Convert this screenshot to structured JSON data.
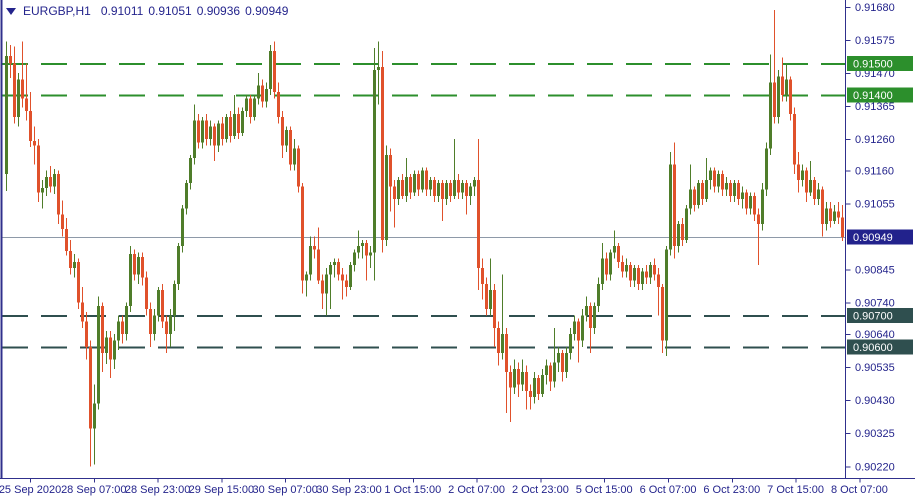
{
  "header": {
    "symbol": "EURGBP,H1",
    "open": "0.91011",
    "high": "0.91051",
    "low": "0.90936",
    "close": "0.90949"
  },
  "colors": {
    "bull": "#4f7d2a",
    "bear": "#e0512b",
    "axis_line": "#30308c",
    "axis_text": "#24248c",
    "background": "#ffffff"
  },
  "chart_data": {
    "type": "candlestick",
    "symbol": "EURGBP",
    "timeframe": "H1",
    "title": "EURGBP,H1  0.91011 0.91051 0.90936 0.90949",
    "grid": false,
    "legend": "none",
    "ylim": [
      0.9022,
      0.9168
    ],
    "y_ticks": [
      "0.91680",
      "0.91575",
      "0.91470",
      "0.91365",
      "0.91260",
      "0.91160",
      "0.91055",
      "0.90845",
      "0.90740",
      "0.90640",
      "0.90535",
      "0.90430",
      "0.90325",
      "0.90220"
    ],
    "x_ticks": [
      "25 Sep 2020",
      "28 Sep 07:00",
      "28 Sep 23:00",
      "29 Sep 15:00",
      "30 Sep 07:00",
      "30 Sep 23:00",
      "1 Oct 15:00",
      "2 Oct 07:00",
      "2 Oct 23:00",
      "5 Oct 15:00",
      "6 Oct 07:00",
      "6 Oct 23:00",
      "7 Oct 15:00",
      "8 Oct 07:00"
    ],
    "levels": [
      {
        "label": "0.91500",
        "price": 0.915,
        "color": "#2c8f2c",
        "style": "dashed"
      },
      {
        "label": "0.91400",
        "price": 0.914,
        "color": "#2c8f2c",
        "style": "dashed"
      },
      {
        "label": "0.90700",
        "price": 0.907,
        "color": "#2f4f4f",
        "style": "dashed"
      },
      {
        "label": "0.90600",
        "price": 0.906,
        "color": "#2f4f4f",
        "style": "dashed"
      }
    ],
    "current_price": {
      "label": "0.90949",
      "price": 0.90949,
      "line_color": "#8e99a8",
      "badge_color": "#22228c"
    },
    "candles": [
      [
        0.9115,
        0.9157,
        0.91095,
        0.91525
      ],
      [
        0.91525,
        0.9156,
        0.91455,
        0.915
      ],
      [
        0.915,
        0.91555,
        0.9131,
        0.9133
      ],
      [
        0.9133,
        0.9147,
        0.913,
        0.9145
      ],
      [
        0.9145,
        0.9157,
        0.9136,
        0.9139
      ],
      [
        0.9139,
        0.915,
        0.9132,
        0.9135
      ],
      [
        0.9135,
        0.9141,
        0.91235,
        0.91255
      ],
      [
        0.91255,
        0.913,
        0.9118,
        0.9124
      ],
      [
        0.9124,
        0.9126,
        0.9106,
        0.9109
      ],
      [
        0.9109,
        0.9113,
        0.9104,
        0.91105
      ],
      [
        0.91105,
        0.9116,
        0.9108,
        0.9114
      ],
      [
        0.9114,
        0.91175,
        0.9109,
        0.9111
      ],
      [
        0.9111,
        0.91165,
        0.91085,
        0.9115
      ],
      [
        0.9115,
        0.9116,
        0.9099,
        0.9102
      ],
      [
        0.9102,
        0.91065,
        0.9095,
        0.90975
      ],
      [
        0.90975,
        0.9101,
        0.9089,
        0.90905
      ],
      [
        0.90905,
        0.9094,
        0.9083,
        0.9085
      ],
      [
        0.9085,
        0.90895,
        0.9082,
        0.9087
      ],
      [
        0.9087,
        0.9088,
        0.9072,
        0.9074
      ],
      [
        0.9074,
        0.9079,
        0.9066,
        0.9068
      ],
      [
        0.9068,
        0.9071,
        0.9056,
        0.906
      ],
      [
        0.906,
        0.9062,
        0.9022,
        0.9034
      ],
      [
        0.9034,
        0.9048,
        0.90225,
        0.9042
      ],
      [
        0.9042,
        0.9076,
        0.904,
        0.9073
      ],
      [
        0.9073,
        0.9074,
        0.9052,
        0.9058
      ],
      [
        0.9058,
        0.9065,
        0.90545,
        0.9063
      ],
      [
        0.9063,
        0.9065,
        0.905,
        0.9056
      ],
      [
        0.9056,
        0.9064,
        0.9053,
        0.9062
      ],
      [
        0.9062,
        0.907,
        0.9059,
        0.9068
      ],
      [
        0.9068,
        0.907,
        0.9061,
        0.9064
      ],
      [
        0.9064,
        0.9074,
        0.9062,
        0.9073
      ],
      [
        0.9073,
        0.9092,
        0.9071,
        0.90895
      ],
      [
        0.90895,
        0.9091,
        0.9081,
        0.9083
      ],
      [
        0.9083,
        0.909,
        0.908,
        0.90885
      ],
      [
        0.90885,
        0.909,
        0.90795,
        0.9082
      ],
      [
        0.9082,
        0.9084,
        0.907,
        0.9072
      ],
      [
        0.9072,
        0.9074,
        0.906,
        0.9064
      ],
      [
        0.9064,
        0.9072,
        0.9062,
        0.907
      ],
      [
        0.907,
        0.9079,
        0.9068,
        0.9078
      ],
      [
        0.9078,
        0.908,
        0.9066,
        0.9068
      ],
      [
        0.9068,
        0.907,
        0.9058,
        0.9064
      ],
      [
        0.9064,
        0.9072,
        0.906,
        0.907
      ],
      [
        0.907,
        0.9081,
        0.9065,
        0.908
      ],
      [
        0.908,
        0.9093,
        0.9078,
        0.9092
      ],
      [
        0.9092,
        0.9105,
        0.909,
        0.9104
      ],
      [
        0.9104,
        0.9113,
        0.9102,
        0.9112
      ],
      [
        0.9112,
        0.9121,
        0.911,
        0.912
      ],
      [
        0.912,
        0.9137,
        0.9118,
        0.9132
      ],
      [
        0.9132,
        0.9134,
        0.9123,
        0.9125
      ],
      [
        0.9125,
        0.9133,
        0.9123,
        0.9132
      ],
      [
        0.9132,
        0.9134,
        0.9124,
        0.9126
      ],
      [
        0.9126,
        0.9132,
        0.9124,
        0.913
      ],
      [
        0.913,
        0.9131,
        0.9119,
        0.9124
      ],
      [
        0.9124,
        0.9132,
        0.9122,
        0.9131
      ],
      [
        0.9131,
        0.9133,
        0.9124,
        0.9126
      ],
      [
        0.9126,
        0.9134,
        0.9125,
        0.9133
      ],
      [
        0.9133,
        0.9135,
        0.9125,
        0.9127
      ],
      [
        0.9127,
        0.914,
        0.9126,
        0.9134
      ],
      [
        0.9134,
        0.9136,
        0.9126,
        0.9128
      ],
      [
        0.9128,
        0.9136,
        0.9127,
        0.9135
      ],
      [
        0.9135,
        0.914,
        0.9133,
        0.9139
      ],
      [
        0.9139,
        0.914,
        0.9131,
        0.9133
      ],
      [
        0.9133,
        0.914,
        0.9132,
        0.9139
      ],
      [
        0.9139,
        0.9147,
        0.9137,
        0.9143
      ],
      [
        0.9143,
        0.9145,
        0.9136,
        0.9138
      ],
      [
        0.9138,
        0.9144,
        0.9136,
        0.9142
      ],
      [
        0.9142,
        0.9156,
        0.914,
        0.9154
      ],
      [
        0.9154,
        0.9157,
        0.9139,
        0.9141
      ],
      [
        0.9141,
        0.9144,
        0.9131,
        0.9133
      ],
      [
        0.9133,
        0.9135,
        0.912,
        0.9124
      ],
      [
        0.9124,
        0.913,
        0.9122,
        0.9129
      ],
      [
        0.9129,
        0.913,
        0.9116,
        0.9118
      ],
      [
        0.9118,
        0.9126,
        0.9116,
        0.9123
      ],
      [
        0.9123,
        0.9124,
        0.9109,
        0.9111
      ],
      [
        0.9111,
        0.9112,
        0.9077,
        0.9081
      ],
      [
        0.9081,
        0.9084,
        0.9076,
        0.9083
      ],
      [
        0.9083,
        0.9095,
        0.9081,
        0.9092
      ],
      [
        0.9092,
        0.9095,
        0.9088,
        0.9091
      ],
      [
        0.9091,
        0.9098,
        0.908,
        0.9081
      ],
      [
        0.9081,
        0.9083,
        0.9072,
        0.9077
      ],
      [
        0.9077,
        0.9085,
        0.907,
        0.9083
      ],
      [
        0.9083,
        0.9087,
        0.9072,
        0.9086
      ],
      [
        0.9086,
        0.9088,
        0.9082,
        0.9087
      ],
      [
        0.9087,
        0.9088,
        0.9081,
        0.9083
      ],
      [
        0.9083,
        0.9085,
        0.9075,
        0.9081
      ],
      [
        0.9081,
        0.9083,
        0.9076,
        0.9079
      ],
      [
        0.9079,
        0.9087,
        0.9078,
        0.9086
      ],
      [
        0.9086,
        0.9091,
        0.9084,
        0.909
      ],
      [
        0.909,
        0.9097,
        0.9088,
        0.9092
      ],
      [
        0.9092,
        0.9094,
        0.9088,
        0.9093
      ],
      [
        0.9093,
        0.9094,
        0.9081,
        0.9089
      ],
      [
        0.9089,
        0.9092,
        0.9085,
        0.909
      ],
      [
        0.909,
        0.9155,
        0.9081,
        0.9148
      ],
      [
        0.9148,
        0.9157,
        0.9137,
        0.9149
      ],
      [
        0.9149,
        0.9154,
        0.909,
        0.9094
      ],
      [
        0.9094,
        0.9124,
        0.9092,
        0.9121
      ],
      [
        0.9121,
        0.9123,
        0.9103,
        0.9111
      ],
      [
        0.9111,
        0.9113,
        0.9098,
        0.9107
      ],
      [
        0.9107,
        0.9114,
        0.9105,
        0.9113
      ],
      [
        0.9113,
        0.9115,
        0.9107,
        0.9108
      ],
      [
        0.9108,
        0.912,
        0.9106,
        0.9114
      ],
      [
        0.9114,
        0.9115,
        0.9107,
        0.9109
      ],
      [
        0.9109,
        0.9116,
        0.9108,
        0.9115
      ],
      [
        0.9115,
        0.9116,
        0.9108,
        0.911
      ],
      [
        0.911,
        0.9117,
        0.9109,
        0.9116
      ],
      [
        0.9116,
        0.9117,
        0.9108,
        0.911
      ],
      [
        0.911,
        0.9114,
        0.9108,
        0.9113
      ],
      [
        0.9113,
        0.9114,
        0.9106,
        0.9108
      ],
      [
        0.9108,
        0.9113,
        0.9106,
        0.9112
      ],
      [
        0.9112,
        0.9113,
        0.91,
        0.9107
      ],
      [
        0.9107,
        0.9113,
        0.9105,
        0.9112
      ],
      [
        0.9112,
        0.9113,
        0.9106,
        0.9108
      ],
      [
        0.9108,
        0.9126,
        0.9107,
        0.9113
      ],
      [
        0.9113,
        0.9115,
        0.9107,
        0.9109
      ],
      [
        0.9109,
        0.9113,
        0.9107,
        0.9112
      ],
      [
        0.9112,
        0.9113,
        0.9102,
        0.9108
      ],
      [
        0.9108,
        0.9112,
        0.9105,
        0.9111
      ],
      [
        0.9111,
        0.9114,
        0.9108,
        0.9113
      ],
      [
        0.9113,
        0.9126,
        0.9078,
        0.9085
      ],
      [
        0.9085,
        0.9088,
        0.9075,
        0.908
      ],
      [
        0.908,
        0.9082,
        0.907,
        0.9072
      ],
      [
        0.9072,
        0.9088,
        0.907,
        0.9078
      ],
      [
        0.9078,
        0.908,
        0.906,
        0.9066
      ],
      [
        0.9066,
        0.9068,
        0.9054,
        0.9058
      ],
      [
        0.9058,
        0.9083,
        0.9056,
        0.9064
      ],
      [
        0.9064,
        0.9066,
        0.9039,
        0.9052
      ],
      [
        0.9052,
        0.9054,
        0.9036,
        0.9047
      ],
      [
        0.9047,
        0.9056,
        0.9045,
        0.9053
      ],
      [
        0.9053,
        0.9055,
        0.9044,
        0.9048
      ],
      [
        0.9048,
        0.9056,
        0.9046,
        0.9052
      ],
      [
        0.9052,
        0.9054,
        0.904,
        0.9046
      ],
      [
        0.9046,
        0.9048,
        0.904,
        0.9044
      ],
      [
        0.9044,
        0.9052,
        0.9042,
        0.905
      ],
      [
        0.905,
        0.9051,
        0.9043,
        0.9045
      ],
      [
        0.9045,
        0.9053,
        0.9044,
        0.9051
      ],
      [
        0.9051,
        0.9056,
        0.9048,
        0.9054
      ],
      [
        0.9054,
        0.9055,
        0.9046,
        0.9049
      ],
      [
        0.9049,
        0.9066,
        0.9047,
        0.9055
      ],
      [
        0.9055,
        0.906,
        0.9052,
        0.9058
      ],
      [
        0.9058,
        0.9059,
        0.9049,
        0.9052
      ],
      [
        0.9052,
        0.906,
        0.905,
        0.9058
      ],
      [
        0.9058,
        0.9066,
        0.9056,
        0.9064
      ],
      [
        0.9064,
        0.907,
        0.9062,
        0.9068
      ],
      [
        0.9068,
        0.9069,
        0.9055,
        0.9062
      ],
      [
        0.9062,
        0.9072,
        0.906,
        0.907
      ],
      [
        0.907,
        0.9076,
        0.9068,
        0.9073
      ],
      [
        0.9073,
        0.9074,
        0.9058,
        0.9066
      ],
      [
        0.9066,
        0.9074,
        0.9064,
        0.9073
      ],
      [
        0.9073,
        0.9082,
        0.9071,
        0.908
      ],
      [
        0.908,
        0.9093,
        0.9078,
        0.9088
      ],
      [
        0.9088,
        0.909,
        0.9081,
        0.9083
      ],
      [
        0.9083,
        0.9091,
        0.9081,
        0.909
      ],
      [
        0.909,
        0.9097,
        0.9088,
        0.9092
      ],
      [
        0.9092,
        0.9093,
        0.9085,
        0.9087
      ],
      [
        0.9087,
        0.9089,
        0.9082,
        0.9084
      ],
      [
        0.9084,
        0.9088,
        0.9082,
        0.9086
      ],
      [
        0.9086,
        0.9087,
        0.9079,
        0.9081
      ],
      [
        0.9081,
        0.9086,
        0.9079,
        0.9085
      ],
      [
        0.9085,
        0.9086,
        0.9078,
        0.908
      ],
      [
        0.908,
        0.9085,
        0.9078,
        0.9084
      ],
      [
        0.9084,
        0.9086,
        0.908,
        0.9082
      ],
      [
        0.9082,
        0.9087,
        0.908,
        0.9086
      ],
      [
        0.9086,
        0.9088,
        0.9081,
        0.9083
      ],
      [
        0.9083,
        0.9085,
        0.907,
        0.9079
      ],
      [
        0.9079,
        0.908,
        0.9058,
        0.9062
      ],
      [
        0.9062,
        0.9092,
        0.9057,
        0.9091
      ],
      [
        0.9091,
        0.9122,
        0.9089,
        0.9118
      ],
      [
        0.9118,
        0.9125,
        0.9088,
        0.9092
      ],
      [
        0.9092,
        0.91,
        0.909,
        0.9099
      ],
      [
        0.9099,
        0.9101,
        0.9092,
        0.9094
      ],
      [
        0.9094,
        0.9105,
        0.9093,
        0.9104
      ],
      [
        0.9104,
        0.9118,
        0.9102,
        0.911
      ],
      [
        0.911,
        0.9111,
        0.9103,
        0.9105
      ],
      [
        0.9105,
        0.9113,
        0.9104,
        0.9112
      ],
      [
        0.9112,
        0.9113,
        0.9105,
        0.9107
      ],
      [
        0.9107,
        0.912,
        0.9106,
        0.9113
      ],
      [
        0.9113,
        0.9117,
        0.911,
        0.9116
      ],
      [
        0.9116,
        0.9117,
        0.9109,
        0.9111
      ],
      [
        0.9111,
        0.9116,
        0.9109,
        0.9115
      ],
      [
        0.9115,
        0.9116,
        0.9108,
        0.911
      ],
      [
        0.911,
        0.9114,
        0.9108,
        0.9112
      ],
      [
        0.9112,
        0.9113,
        0.9106,
        0.9108
      ],
      [
        0.9108,
        0.9113,
        0.9106,
        0.9112
      ],
      [
        0.9112,
        0.9113,
        0.9105,
        0.9107
      ],
      [
        0.9107,
        0.9111,
        0.9104,
        0.9109
      ],
      [
        0.9109,
        0.911,
        0.9102,
        0.9104
      ],
      [
        0.9104,
        0.9109,
        0.9102,
        0.9108
      ],
      [
        0.9108,
        0.9109,
        0.91,
        0.9102
      ],
      [
        0.9102,
        0.9104,
        0.9086,
        0.9099
      ],
      [
        0.9099,
        0.9112,
        0.9097,
        0.911
      ],
      [
        0.911,
        0.9125,
        0.9108,
        0.9123
      ],
      [
        0.9123,
        0.9153,
        0.9121,
        0.9144
      ],
      [
        0.9144,
        0.9167,
        0.9131,
        0.9133
      ],
      [
        0.9133,
        0.9148,
        0.9131,
        0.9146
      ],
      [
        0.9146,
        0.9152,
        0.9138,
        0.914
      ],
      [
        0.914,
        0.915,
        0.9138,
        0.9145
      ],
      [
        0.9145,
        0.9146,
        0.9132,
        0.9134
      ],
      [
        0.9134,
        0.9136,
        0.9115,
        0.9118
      ],
      [
        0.9118,
        0.9122,
        0.9109,
        0.9113
      ],
      [
        0.9113,
        0.9118,
        0.9111,
        0.9116
      ],
      [
        0.9116,
        0.9117,
        0.9106,
        0.9109
      ],
      [
        0.9109,
        0.9119,
        0.9108,
        0.9113
      ],
      [
        0.9113,
        0.9114,
        0.9105,
        0.9107
      ],
      [
        0.9107,
        0.9112,
        0.9105,
        0.911
      ],
      [
        0.911,
        0.9111,
        0.9095,
        0.9099
      ],
      [
        0.9099,
        0.9106,
        0.9097,
        0.9104
      ],
      [
        0.9104,
        0.9106,
        0.9098,
        0.91
      ],
      [
        0.91,
        0.9105,
        0.9099,
        0.9103
      ],
      [
        0.9103,
        0.9106,
        0.9099,
        0.91011
      ],
      [
        0.91011,
        0.91051,
        0.90936,
        0.90949
      ]
    ]
  }
}
